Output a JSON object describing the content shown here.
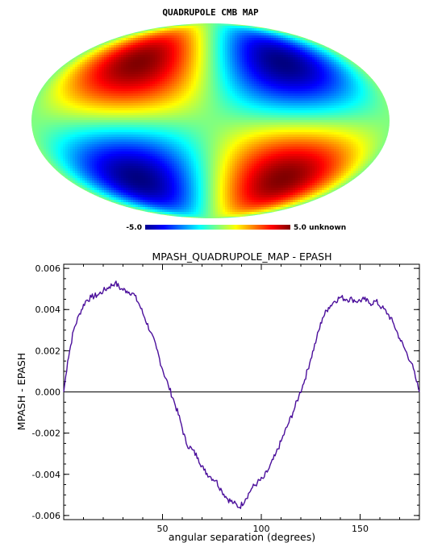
{
  "chart_data": [
    {
      "type": "heatmap",
      "title": "QUADRUPOLE  CMB  MAP",
      "projection": "mollweide",
      "colormap": "jet",
      "colorbar": {
        "min_label": "-5.0",
        "max_label": "5.0 unknown",
        "min": -5.0,
        "max": 5.0
      },
      "features": [
        {
          "lon": -90,
          "lat": 45,
          "value": 5.0
        },
        {
          "lon": 90,
          "lat": 45,
          "value": -5.0
        },
        {
          "lon": -90,
          "lat": -45,
          "value": -5.0
        },
        {
          "lon": 90,
          "lat": -45,
          "value": 5.0
        }
      ]
    },
    {
      "type": "line",
      "title": "MPASH_QUADRUPOLE_MAP  -  EPASH",
      "xlabel": "angular separation (degrees)",
      "ylabel": "MPASH  -  EPASH",
      "xlim": [
        0,
        180
      ],
      "ylim": [
        -0.0062,
        0.0062
      ],
      "xticks": [
        50,
        100,
        150
      ],
      "xtick_labels": [
        "50",
        "100",
        "150"
      ],
      "yticks": [
        -0.006,
        -0.004,
        -0.002,
        0.0,
        0.002,
        0.004,
        0.006
      ],
      "ytick_labels": [
        "-0.006",
        "-0.004",
        "-0.002",
        "0.000",
        "0.002",
        "0.004",
        "0.006"
      ],
      "zero_line": true,
      "series": [
        {
          "color": "#4b0f9b",
          "x": [
            0,
            2,
            5,
            8,
            11,
            14,
            17,
            20,
            23,
            26,
            29,
            32,
            35,
            38,
            41,
            44,
            47,
            50,
            53,
            56,
            59,
            62,
            65,
            68,
            71,
            74,
            77,
            80,
            83,
            86,
            89,
            92,
            95,
            98,
            101,
            104,
            107,
            110,
            113,
            116,
            119,
            122,
            125,
            128,
            131,
            134,
            137,
            140,
            143,
            146,
            149,
            152,
            155,
            158,
            161,
            164,
            167,
            170,
            173,
            176,
            178,
            180
          ],
          "y": [
            0.0,
            0.0015,
            0.003,
            0.0038,
            0.0044,
            0.0046,
            0.0047,
            0.0049,
            0.0051,
            0.0053,
            0.005,
            0.0049,
            0.0048,
            0.0043,
            0.0036,
            0.0029,
            0.0021,
            0.0011,
            0.0003,
            -0.0005,
            -0.0014,
            -0.0025,
            -0.0028,
            -0.0032,
            -0.0038,
            -0.0041,
            -0.0043,
            -0.0048,
            -0.0052,
            -0.0054,
            -0.0056,
            -0.0052,
            -0.0047,
            -0.0044,
            -0.0042,
            -0.0037,
            -0.0031,
            -0.0024,
            -0.0017,
            -0.001,
            -0.0002,
            0.0006,
            0.0016,
            0.0026,
            0.0036,
            0.0041,
            0.0044,
            0.0046,
            0.0045,
            0.0045,
            0.0044,
            0.0045,
            0.0043,
            0.0044,
            0.0041,
            0.0038,
            0.0033,
            0.0026,
            0.002,
            0.0014,
            0.0007,
            0.0
          ]
        }
      ]
    }
  ]
}
